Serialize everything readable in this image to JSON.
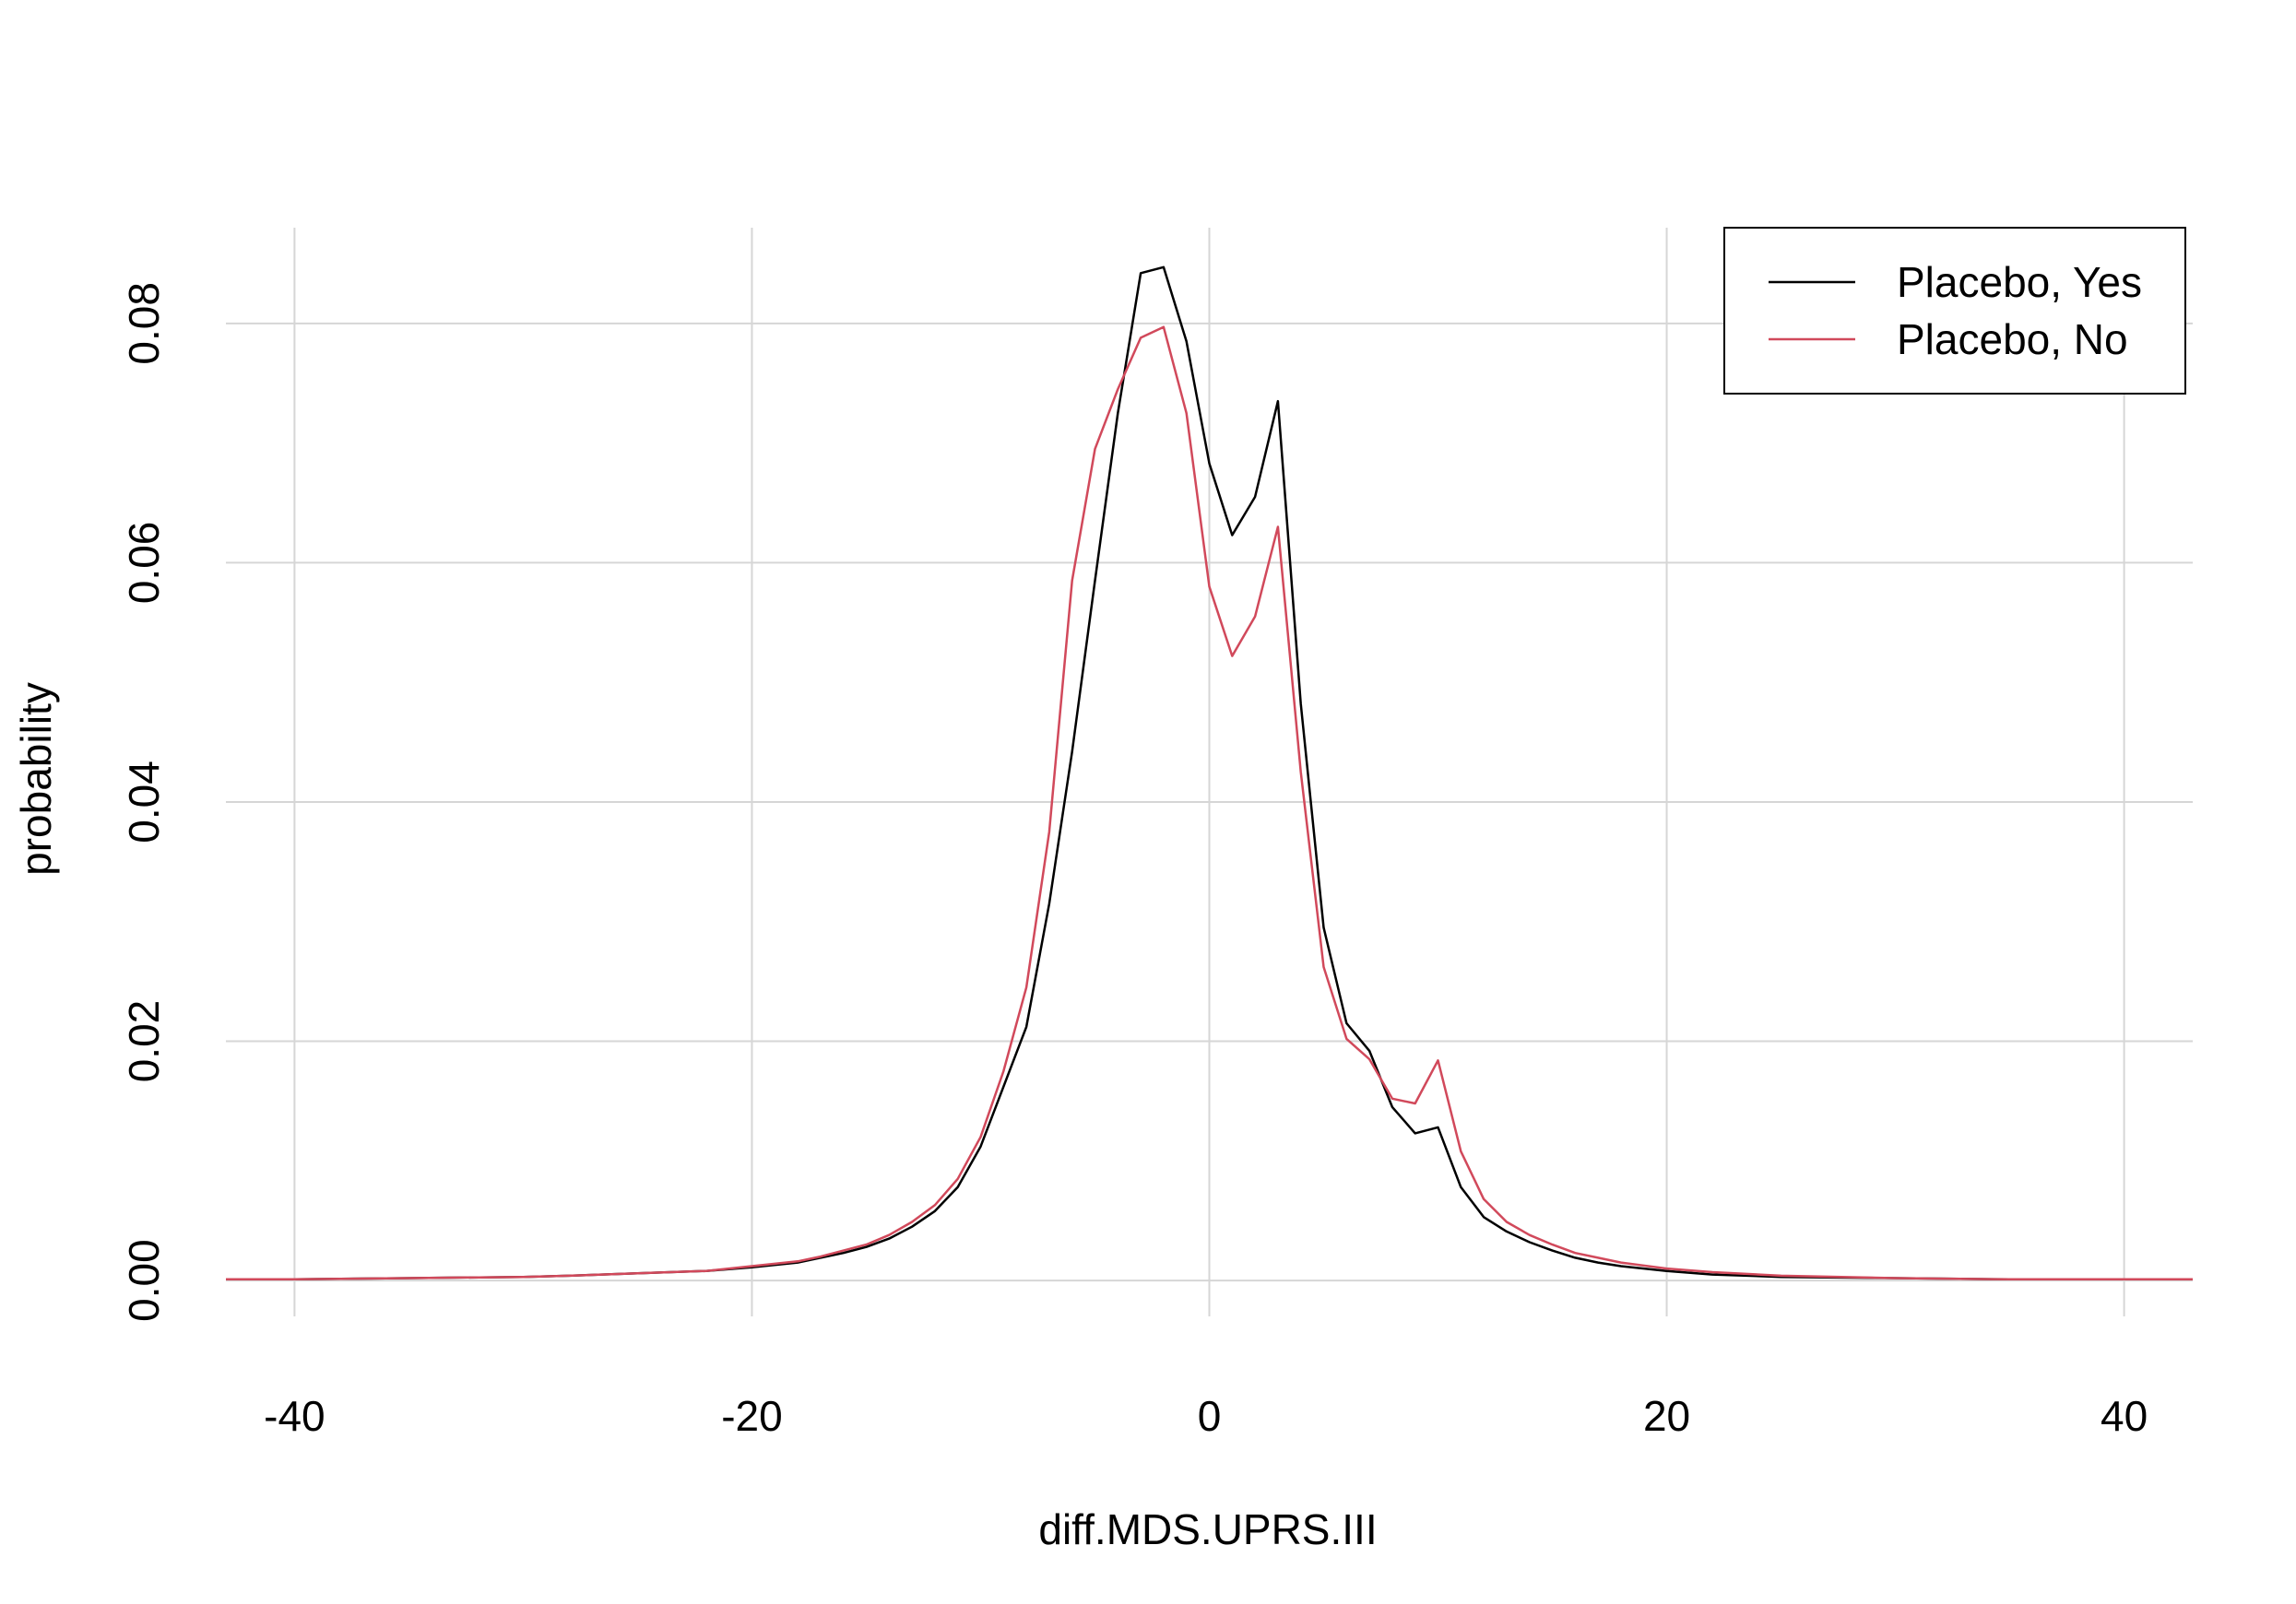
{
  "chart_data": {
    "type": "line",
    "title": "",
    "xlabel": "diff.MDS.UPRS.III",
    "ylabel": "probability",
    "xlim": [
      -43,
      43
    ],
    "ylim": [
      -0.003,
      0.088
    ],
    "x_ticks": [
      -40,
      -20,
      0,
      20,
      40
    ],
    "x_tick_labels": [
      "-40",
      "-20",
      "0",
      "20",
      "40"
    ],
    "y_ticks": [
      0.0,
      0.02,
      0.04,
      0.06,
      0.08
    ],
    "y_tick_labels": [
      "0.00",
      "0.02",
      "0.04",
      "0.06",
      "0.08"
    ],
    "grid": true,
    "legend_position": "top-right",
    "colors": {
      "placebo_yes": "#000000",
      "placebo_no": "#d1495b",
      "grid": "#d6d6d6"
    },
    "series": [
      {
        "name": "Placebo, Yes",
        "color": "#000000",
        "x": [
          -43,
          -40,
          -35,
          -30,
          -28,
          -25,
          -22,
          -20,
          -18,
          -17,
          -16,
          -15,
          -14,
          -13,
          -12,
          -11,
          -10,
          -9,
          -8,
          -7,
          -6,
          -5,
          -4,
          -3,
          -2,
          -1,
          0,
          1,
          2,
          3,
          4,
          5,
          6,
          7,
          8,
          9,
          10,
          11,
          12,
          13,
          14,
          15,
          16,
          17,
          18,
          20,
          22,
          25,
          30,
          35,
          40,
          43
        ],
        "y": [
          0.0001,
          0.0001,
          0.0002,
          0.0003,
          0.0004,
          0.0006,
          0.0008,
          0.0011,
          0.0015,
          0.0019,
          0.0023,
          0.0028,
          0.0035,
          0.0045,
          0.0058,
          0.0078,
          0.0112,
          0.0162,
          0.0212,
          0.0315,
          0.0442,
          0.0585,
          0.0725,
          0.0842,
          0.0847,
          0.0785,
          0.0683,
          0.0623,
          0.0655,
          0.0735,
          0.0482,
          0.0295,
          0.0215,
          0.0192,
          0.0145,
          0.0123,
          0.0128,
          0.0078,
          0.0053,
          0.0041,
          0.0032,
          0.0025,
          0.0019,
          0.0015,
          0.0012,
          0.0008,
          0.0005,
          0.0003,
          0.0002,
          0.0001,
          0.0001,
          0.0001
        ]
      },
      {
        "name": "Placebo, No",
        "color": "#d1495b",
        "x": [
          -43,
          -40,
          -35,
          -30,
          -28,
          -25,
          -22,
          -20,
          -18,
          -17,
          -16,
          -15,
          -14,
          -13,
          -12,
          -11,
          -10,
          -9,
          -8,
          -7,
          -6,
          -5,
          -4,
          -3,
          -2,
          -1,
          0,
          1,
          2,
          3,
          4,
          5,
          6,
          7,
          8,
          9,
          10,
          11,
          12,
          13,
          14,
          15,
          16,
          17,
          18,
          20,
          22,
          25,
          30,
          35,
          40,
          43
        ],
        "y": [
          0.0001,
          0.0001,
          0.0002,
          0.0003,
          0.0004,
          0.0006,
          0.0008,
          0.0012,
          0.0016,
          0.002,
          0.0025,
          0.003,
          0.0038,
          0.0049,
          0.0063,
          0.0085,
          0.012,
          0.0175,
          0.0245,
          0.0375,
          0.0585,
          0.0695,
          0.0745,
          0.0788,
          0.0797,
          0.0725,
          0.058,
          0.0522,
          0.0555,
          0.063,
          0.0425,
          0.0262,
          0.0202,
          0.0185,
          0.0152,
          0.0148,
          0.0184,
          0.0108,
          0.0068,
          0.0049,
          0.0038,
          0.003,
          0.0023,
          0.0019,
          0.0015,
          0.001,
          0.0007,
          0.0004,
          0.0002,
          0.0001,
          0.0001,
          0.0001
        ]
      }
    ]
  }
}
